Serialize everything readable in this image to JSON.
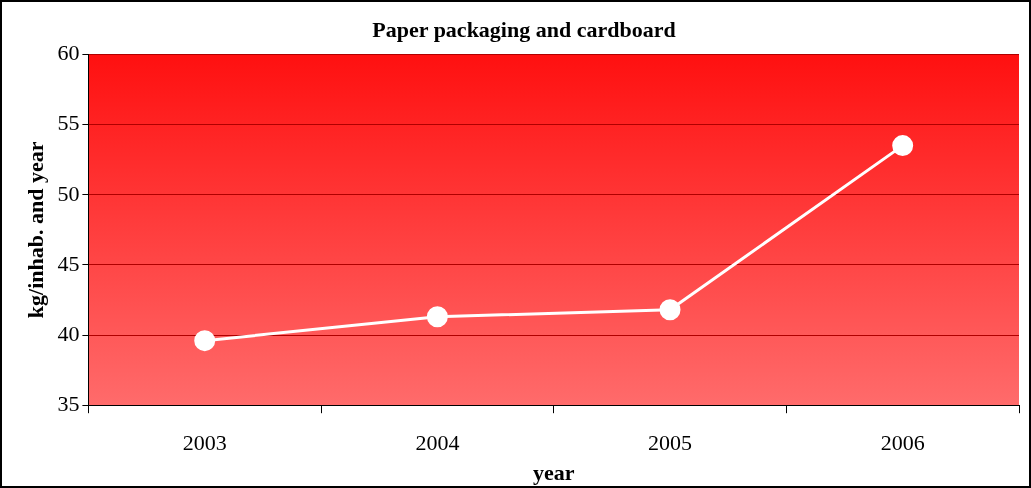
{
  "chart_data": {
    "type": "line",
    "title": "Paper packaging and cardboard",
    "xlabel": "year",
    "ylabel": "kg/inhab. and year",
    "categories": [
      "2003",
      "2004",
      "2005",
      "2006"
    ],
    "series": [
      {
        "color": "#ffffff",
        "values": [
          39.6,
          41.3,
          41.8,
          53.5
        ]
      }
    ],
    "ylim": [
      35,
      60
    ],
    "yticks": [
      35,
      40,
      45,
      50,
      55,
      60
    ],
    "grid": "y",
    "legend": false,
    "marker": "circle",
    "line_style": "solid"
  }
}
